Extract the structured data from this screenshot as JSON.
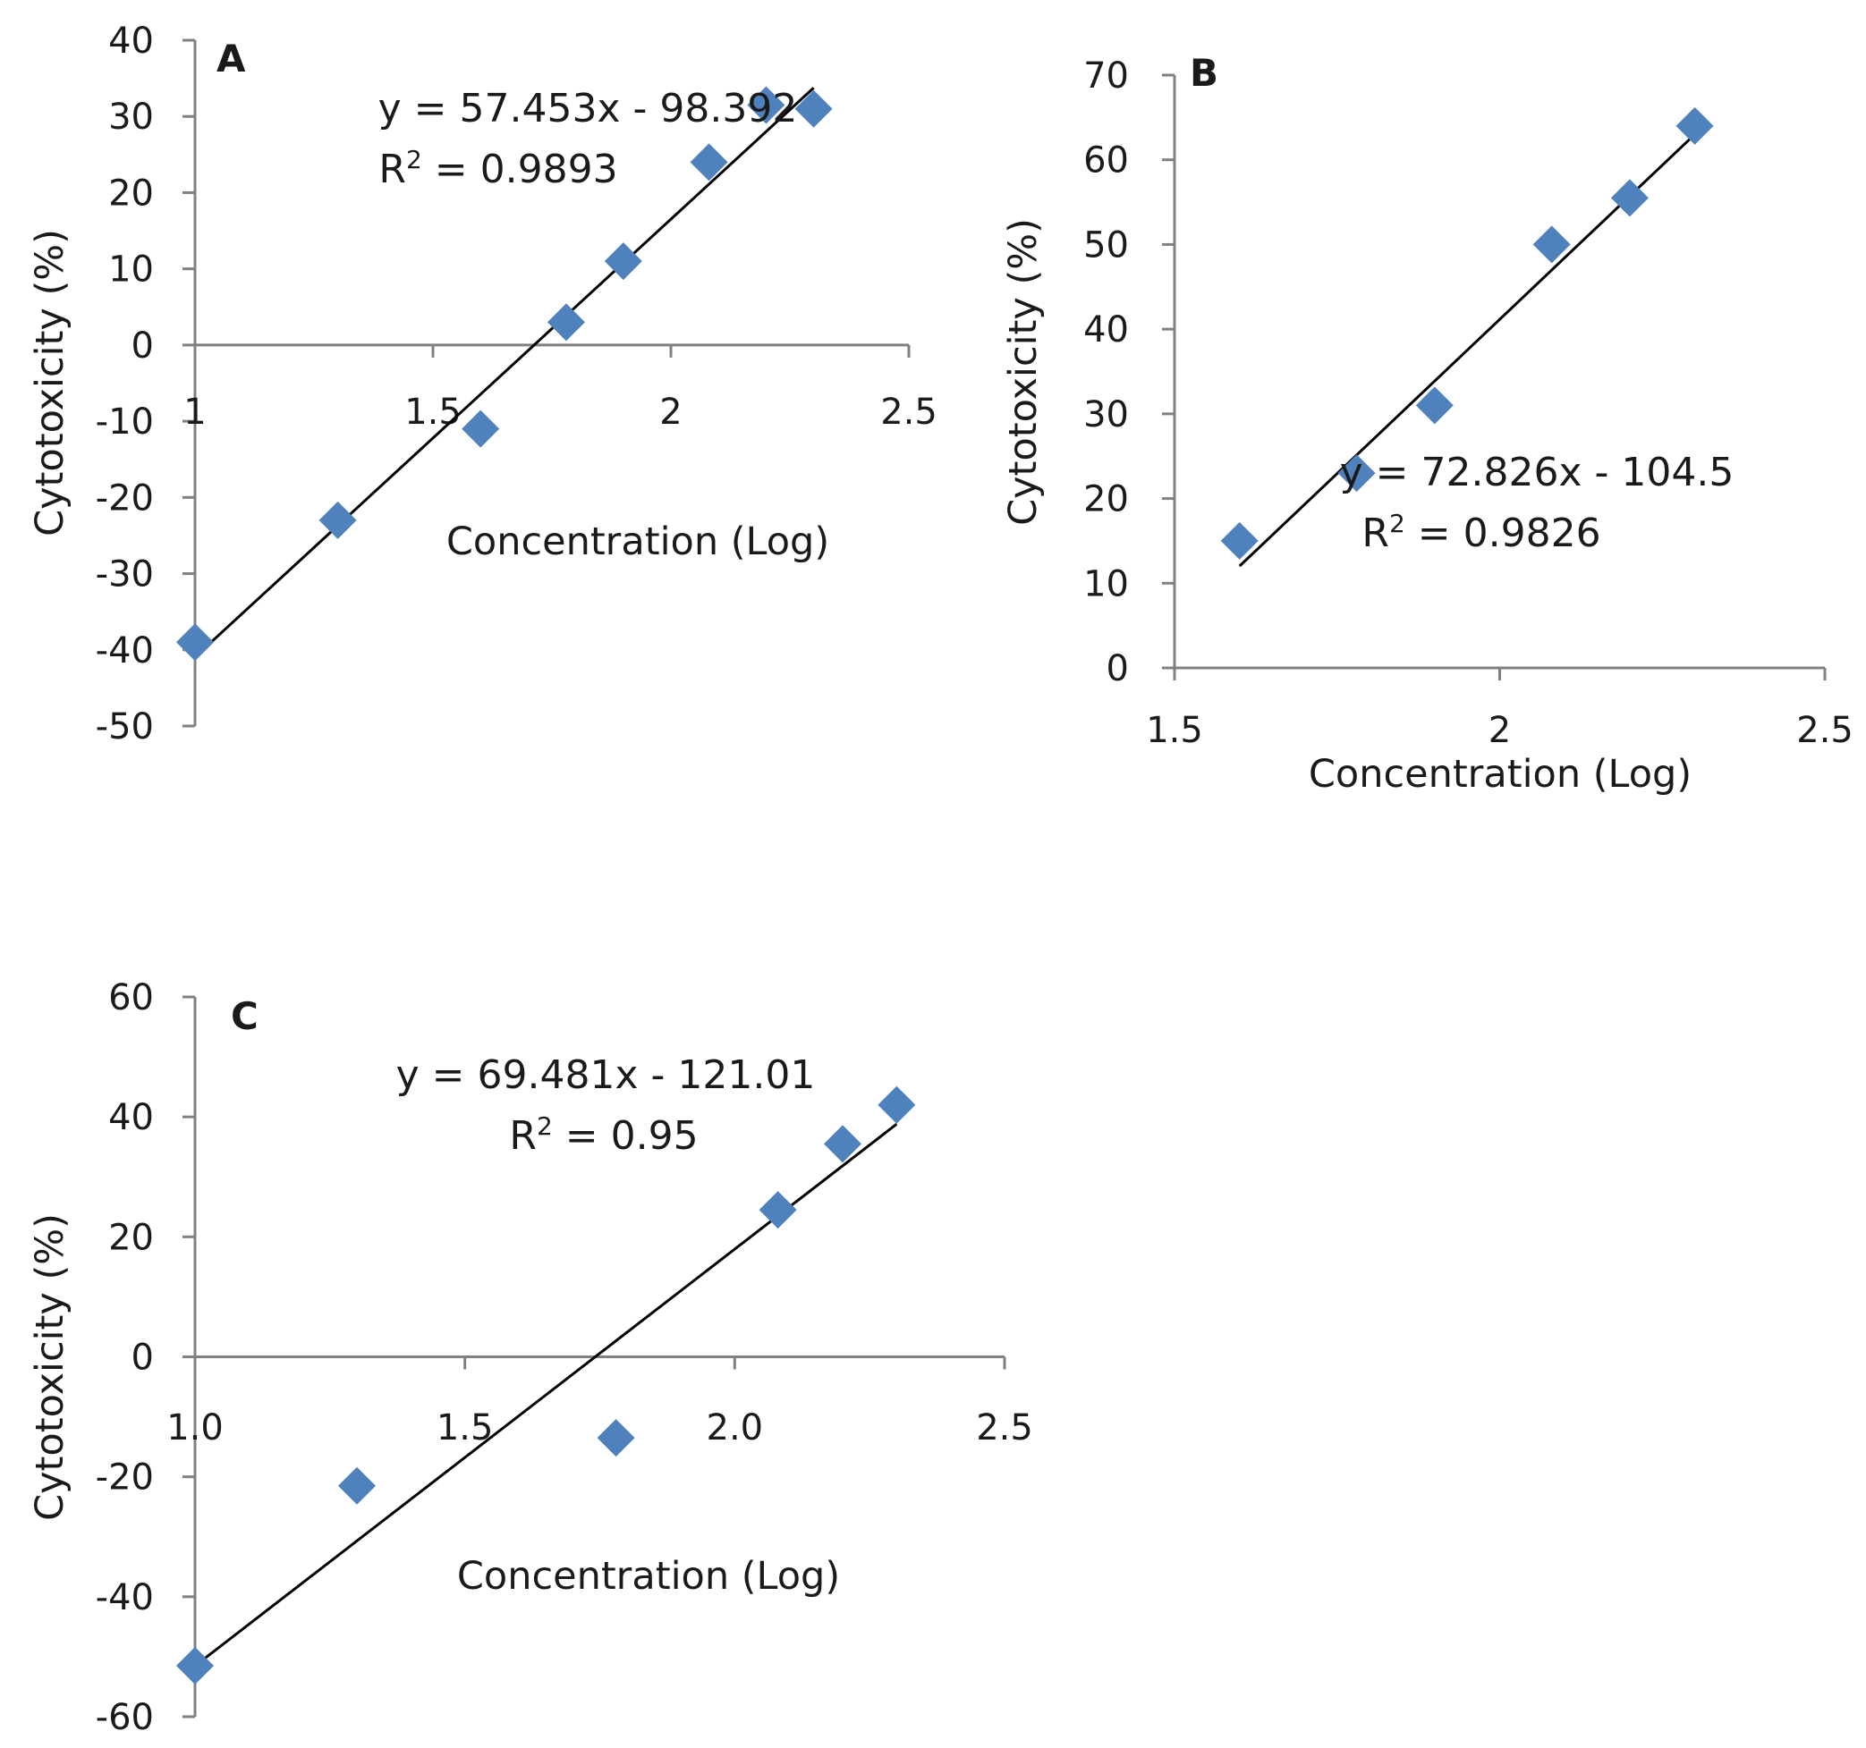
{
  "colors": {
    "marker": "#4f81bd",
    "axis": "#808080",
    "trendline": "#000000",
    "text": "#1a1a1a"
  },
  "chart_data": [
    {
      "type": "scatter",
      "panel_label": "A",
      "xlabel": "Concentration (Log)",
      "ylabel": "Cytotoxicity (%)",
      "xlim": [
        1,
        2.5
      ],
      "ylim": [
        -50,
        40
      ],
      "x_ticks": [
        "1",
        "1.5",
        "2",
        "2.5"
      ],
      "y_ticks": [
        "40",
        "30",
        "20",
        "10",
        "0",
        "-10",
        "-20",
        "-30",
        "-40",
        "-50"
      ],
      "x": [
        1.0,
        1.3,
        1.6,
        1.78,
        1.9,
        2.08,
        2.2,
        2.3
      ],
      "y": [
        -39,
        -23,
        -11,
        3,
        11,
        24,
        31.5,
        31
      ],
      "trendline": {
        "slope": 57.453,
        "intercept": -98.392,
        "x_range": [
          1.0,
          2.3
        ]
      },
      "equation": "y = 57.453x - 98.392",
      "r2_prefix": "R",
      "r2_sup": "2",
      "r2_value": " = 0.9893"
    },
    {
      "type": "scatter",
      "panel_label": "B",
      "xlabel": "Concentration (Log)",
      "ylabel": "Cytotoxicity (%)",
      "xlim": [
        1.5,
        2.5
      ],
      "ylim": [
        0,
        70
      ],
      "x_ticks": [
        "1.5",
        "2",
        "2.5"
      ],
      "y_ticks": [
        "70",
        "60",
        "50",
        "40",
        "30",
        "20",
        "10",
        "0"
      ],
      "x": [
        1.6,
        1.78,
        1.9,
        2.08,
        2.2,
        2.3
      ],
      "y": [
        15,
        23,
        31,
        50,
        55.5,
        64
      ],
      "trendline": {
        "slope": 72.826,
        "intercept": -104.5,
        "x_range": [
          1.6,
          2.3
        ]
      },
      "equation": "y = 72.826x - 104.5",
      "r2_prefix": "R",
      "r2_sup": "2",
      "r2_value": " = 0.9826"
    },
    {
      "type": "scatter",
      "panel_label": "C",
      "xlabel": "Concentration (Log)",
      "ylabel": "Cytotoxicity (%)",
      "xlim": [
        1.0,
        2.5
      ],
      "ylim": [
        -60,
        60
      ],
      "x_ticks": [
        "1.0",
        "1.5",
        "2.0",
        "2.5"
      ],
      "y_ticks": [
        "60",
        "40",
        "20",
        "0",
        "-20",
        "-40",
        "-60"
      ],
      "x": [
        1.0,
        1.3,
        1.78,
        2.08,
        2.2,
        2.3
      ],
      "y": [
        -51.5,
        -21.5,
        -13.5,
        24.5,
        35.5,
        42
      ],
      "trendline": {
        "slope": 69.481,
        "intercept": -121.01,
        "x_range": [
          1.0,
          2.3
        ]
      },
      "equation": "y = 69.481x - 121.01",
      "r2_prefix": "R",
      "r2_sup": "2",
      "r2_value": " = 0.95"
    }
  ]
}
